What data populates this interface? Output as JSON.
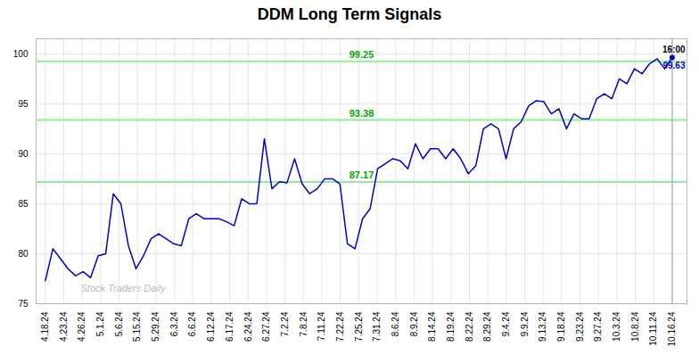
{
  "chart_data": {
    "type": "line",
    "title": "DDM Long Term Signals",
    "x": [
      0,
      0.4096,
      0.8193,
      1.2289,
      1.6386,
      2.0482,
      2.4578,
      2.8675,
      3.2771,
      3.6867,
      4.0964,
      4.506,
      4.9157,
      5.3253,
      5.7349,
      6.1446,
      6.5542,
      6.9639,
      7.3735,
      7.7831,
      8.1928,
      8.6024,
      9.012,
      9.4217,
      9.8313,
      10.241,
      10.6506,
      11.0602,
      11.4699,
      11.8795,
      12.2892,
      12.6988,
      13.1084,
      13.5181,
      13.9277,
      14.3373,
      14.747,
      15.1566,
      15.5663,
      15.9759,
      16.3855,
      16.7952,
      17.2048,
      17.6145,
      18.0241,
      18.4337,
      18.8434,
      19.253,
      19.6627,
      20.0723,
      20.4819,
      20.8916,
      21.3012,
      21.7108,
      22.1205,
      22.5301,
      22.9398,
      23.3494,
      23.759,
      24.1687,
      24.5783,
      24.988,
      25.3976,
      25.8072,
      26.2169,
      26.6265,
      27.0361,
      27.4458,
      27.8554,
      28.2651,
      28.6747,
      29.0843,
      29.494,
      29.9036,
      30.3133,
      30.7229,
      31.1325,
      31.5422,
      31.9518,
      32.3614,
      32.7711,
      33.1807,
      33.5904,
      34
    ],
    "values": [
      77.3,
      80.5,
      79.5,
      78.5,
      77.8,
      78.2,
      77.6,
      79.8,
      80.0,
      86.0,
      85.0,
      80.8,
      78.5,
      79.8,
      81.5,
      82.0,
      81.5,
      81.0,
      80.8,
      83.5,
      84.0,
      83.5,
      83.5,
      83.5,
      83.2,
      82.8,
      85.5,
      85.0,
      85.0,
      91.5,
      86.5,
      87.2,
      87.1,
      89.5,
      87.0,
      86.0,
      86.5,
      87.5,
      87.5,
      87.0,
      81.0,
      80.5,
      83.5,
      84.5,
      88.5,
      89.0,
      89.5,
      89.3,
      88.5,
      91.0,
      89.5,
      90.5,
      90.5,
      89.5,
      90.5,
      89.5,
      88.0,
      88.8,
      92.5,
      93.0,
      92.5,
      89.5,
      92.5,
      93.2,
      94.8,
      95.3,
      95.2,
      94.0,
      94.5,
      92.5,
      94.0,
      93.5,
      93.5,
      95.5,
      96.0,
      95.5,
      97.5,
      97.0,
      98.5,
      98.0,
      99.0,
      99.5,
      98.5,
      99.63
    ],
    "color": "#0000CC",
    "xlim": [
      -0.5,
      34.8
    ],
    "xticks": [
      {
        "value": 0,
        "label": "4.18.24"
      },
      {
        "value": 1,
        "label": "4.23.24"
      },
      {
        "value": 2,
        "label": "4.26.24"
      },
      {
        "value": 3,
        "label": "5.1.24"
      },
      {
        "value": 4,
        "label": "5.6.24"
      },
      {
        "value": 5,
        "label": "5.15.24"
      },
      {
        "value": 6,
        "label": "5.29.24"
      },
      {
        "value": 7,
        "label": "6.3.24"
      },
      {
        "value": 8,
        "label": "6.6.24"
      },
      {
        "value": 9,
        "label": "6.12.24"
      },
      {
        "value": 10,
        "label": "6.17.24"
      },
      {
        "value": 11,
        "label": "6.24.24"
      },
      {
        "value": 12,
        "label": "6.27.24"
      },
      {
        "value": 13,
        "label": "7.2.24"
      },
      {
        "value": 14,
        "label": "7.8.24"
      },
      {
        "value": 15,
        "label": "7.11.24"
      },
      {
        "value": 16,
        "label": "7.22.24"
      },
      {
        "value": 17,
        "label": "7.25.24"
      },
      {
        "value": 18,
        "label": "7.31.24"
      },
      {
        "value": 19,
        "label": "8.6.24"
      },
      {
        "value": 20,
        "label": "8.9.24"
      },
      {
        "value": 21,
        "label": "8.14.24"
      },
      {
        "value": 22,
        "label": "8.19.24"
      },
      {
        "value": 23,
        "label": "8.22.24"
      },
      {
        "value": 24,
        "label": "8.29.24"
      },
      {
        "value": 25,
        "label": "9.4.24"
      },
      {
        "value": 26,
        "label": "9.9.24"
      },
      {
        "value": 27,
        "label": "9.13.24"
      },
      {
        "value": 28,
        "label": "9.18.24"
      },
      {
        "value": 29,
        "label": "9.23.24"
      },
      {
        "value": 30,
        "label": "9.27.24"
      },
      {
        "value": 31,
        "label": "10.3.24"
      },
      {
        "value": 32,
        "label": "10.8.24"
      },
      {
        "value": 33,
        "label": "10.11.24"
      },
      {
        "value": 34,
        "label": "10.16.24"
      }
    ],
    "ylim": [
      75,
      101.5
    ],
    "yticks": [
      75,
      80,
      85,
      90,
      95,
      100
    ],
    "grid": true,
    "grid_color": "#CCCCCC",
    "background_color": "#FFFFFF",
    "hlines": {
      "values": [
        87.17,
        93.38,
        99.25
      ],
      "labels": [
        "87.17",
        "93.38",
        "99.25"
      ],
      "color": "#90EE90",
      "label_color": "#00AA00"
    },
    "last_point": {
      "time_label": "16:00",
      "price_label": "99.63",
      "color": "#888888"
    },
    "watermark": {
      "text": "Stock Traders Daily",
      "color": "#BBBBBB"
    }
  }
}
